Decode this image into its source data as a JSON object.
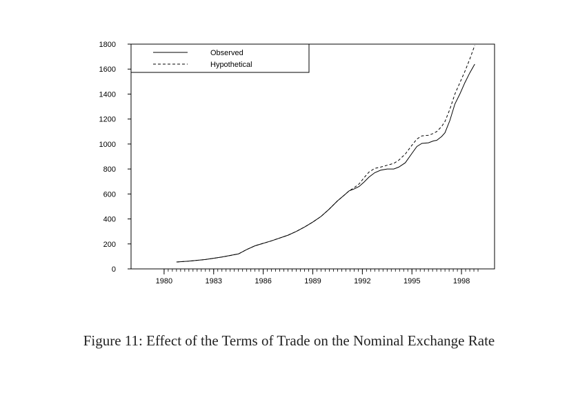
{
  "figure_caption": "Figure 11: Effect of the Terms of Trade on the Nominal Exchange Rate",
  "chart_data": {
    "type": "line",
    "title": "",
    "xlabel": "",
    "ylabel": "",
    "xlim": [
      1978,
      2000
    ],
    "ylim": [
      0,
      1800
    ],
    "x_ticks": [
      1980,
      1983,
      1986,
      1989,
      1992,
      1995,
      1998
    ],
    "y_ticks": [
      0,
      200,
      400,
      600,
      800,
      1000,
      1200,
      1400,
      1600,
      1800
    ],
    "legend_position": "top-left",
    "grid": false,
    "series": [
      {
        "name": "Observed",
        "style": "solid",
        "color": "#000000",
        "x": [
          1980.75,
          1981.5,
          1982.5,
          1983.5,
          1984.5,
          1985.0,
          1985.5,
          1986.5,
          1987.5,
          1988.0,
          1988.5,
          1989.0,
          1989.5,
          1990.0,
          1990.5,
          1990.9,
          1991.2,
          1991.5,
          1991.8,
          1992.1,
          1992.4,
          1992.75,
          1993.1,
          1993.5,
          1993.9,
          1994.2,
          1994.6,
          1995.0,
          1995.3,
          1995.6,
          1996.0,
          1996.3,
          1996.5,
          1996.8,
          1997.0,
          1997.3,
          1997.6,
          1997.9,
          1998.2,
          1998.5,
          1998.8
        ],
        "values": [
          55,
          62,
          75,
          95,
          120,
          155,
          185,
          225,
          270,
          300,
          335,
          375,
          420,
          480,
          545,
          590,
          625,
          640,
          660,
          695,
          735,
          770,
          790,
          800,
          800,
          815,
          850,
          925,
          980,
          1005,
          1010,
          1025,
          1030,
          1060,
          1090,
          1190,
          1320,
          1400,
          1490,
          1570,
          1640
        ]
      },
      {
        "name": "Hypothetical",
        "style": "dashed",
        "color": "#000000",
        "x": [
          1980.75,
          1981.5,
          1982.5,
          1983.5,
          1984.5,
          1985.0,
          1985.5,
          1986.5,
          1987.5,
          1988.0,
          1988.5,
          1989.0,
          1989.5,
          1990.0,
          1990.5,
          1990.9,
          1991.2,
          1991.5,
          1991.8,
          1992.1,
          1992.4,
          1992.75,
          1993.1,
          1993.5,
          1993.9,
          1994.2,
          1994.6,
          1995.0,
          1995.3,
          1995.6,
          1996.0,
          1996.3,
          1996.5,
          1996.8,
          1997.0,
          1997.3,
          1997.6,
          1997.9,
          1998.2,
          1998.5,
          1998.8
        ],
        "values": [
          55,
          62,
          75,
          95,
          120,
          155,
          185,
          225,
          270,
          300,
          335,
          375,
          420,
          480,
          545,
          590,
          625,
          650,
          680,
          730,
          775,
          805,
          815,
          830,
          845,
          870,
          920,
          990,
          1040,
          1065,
          1070,
          1085,
          1100,
          1140,
          1180,
          1280,
          1400,
          1490,
          1580,
          1680,
          1790
        ]
      }
    ]
  }
}
